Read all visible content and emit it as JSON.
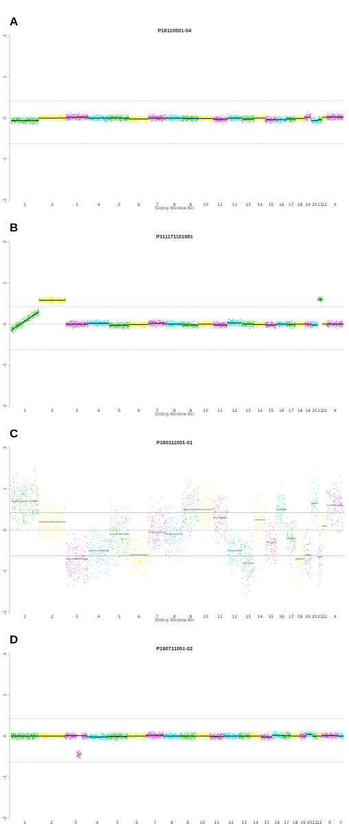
{
  "colors": {
    "palette": [
      "#33cc33",
      "#f0f02a",
      "#cc55cc",
      "#22dddd"
    ],
    "segment": "#111111",
    "threshold": "#888888",
    "baseline": "#aaaaaa"
  },
  "panels": [
    {
      "letter": "A",
      "title": "P18110501-04",
      "xlabel": "Sliding Window Bin",
      "y_ticks": [
        "2",
        "1",
        "0",
        "-1",
        "-2"
      ],
      "chr_labels": [
        "1",
        "2",
        "3",
        "4",
        "5",
        "6",
        "7",
        "8",
        "9",
        "10",
        "11",
        "12",
        "13",
        "14",
        "15",
        "16",
        "17",
        "18",
        "19",
        "20",
        "21",
        "22",
        "X"
      ]
    },
    {
      "letter": "B",
      "title": "P311171101001",
      "xlabel": "Sliding Window Bin",
      "y_ticks": [
        "2",
        "1",
        "0",
        "-1",
        "-2"
      ],
      "chr_labels": [
        "1",
        "2",
        "3",
        "4",
        "5",
        "6",
        "7",
        "8",
        "9",
        "10",
        "11",
        "12",
        "13",
        "14",
        "15",
        "16",
        "17",
        "18",
        "19",
        "20",
        "21",
        "22",
        "X"
      ]
    },
    {
      "letter": "C",
      "title": "P180111001-01",
      "xlabel": "Sliding Window Bin",
      "y_ticks": [
        "2",
        "1",
        "0",
        "-1",
        "-2"
      ],
      "chr_labels": [
        "1",
        "2",
        "3",
        "4",
        "5",
        "6",
        "7",
        "8",
        "9",
        "10",
        "11",
        "12",
        "13",
        "14",
        "15",
        "16",
        "17",
        "18",
        "19",
        "20",
        "21",
        "22",
        "X"
      ]
    },
    {
      "letter": "D",
      "title": "P180711001-02",
      "xlabel": "Sliding Window Bin",
      "y_ticks": [
        "2",
        "1",
        "0",
        "-1",
        "-2"
      ],
      "chr_labels": [
        "1",
        "2",
        "3",
        "4",
        "5",
        "6",
        "7",
        "8",
        "9",
        "10",
        "11",
        "12",
        "13",
        "14",
        "15",
        "16",
        "17",
        "18",
        "19",
        "20",
        "21",
        "22",
        "X",
        "Y"
      ]
    }
  ],
  "chart_data": [
    {
      "type": "scatter",
      "title": "P18110501-04",
      "xlabel": "Sliding Window Bin",
      "ylabel": "",
      "ylim": [
        -2,
        2
      ],
      "threshold_lines": [
        0.42,
        -0.62
      ],
      "chromosomes": [
        "1",
        "2",
        "3",
        "4",
        "5",
        "6",
        "7",
        "8",
        "9",
        "10",
        "11",
        "12",
        "13",
        "14",
        "15",
        "16",
        "17",
        "18",
        "19",
        "20",
        "21",
        "22",
        "X"
      ],
      "segments": [
        {
          "chr": "1",
          "mean": -0.06,
          "spread": 0.07
        },
        {
          "chr": "2",
          "mean": 0.0,
          "spread": 0.07
        },
        {
          "chr": "3",
          "mean": 0.02,
          "spread": 0.07
        },
        {
          "chr": "4",
          "mean": 0.0,
          "spread": 0.07
        },
        {
          "chr": "5",
          "mean": 0.0,
          "spread": 0.07
        },
        {
          "chr": "6",
          "mean": -0.02,
          "spread": 0.07
        },
        {
          "chr": "7",
          "mean": 0.0,
          "spread": 0.07
        },
        {
          "chr": "8",
          "mean": 0.0,
          "spread": 0.07
        },
        {
          "chr": "9",
          "mean": -0.01,
          "spread": 0.07
        },
        {
          "chr": "10",
          "mean": -0.01,
          "spread": 0.07
        },
        {
          "chr": "11",
          "mean": -0.03,
          "spread": 0.07
        },
        {
          "chr": "12",
          "mean": 0.0,
          "spread": 0.07
        },
        {
          "chr": "13",
          "mean": -0.02,
          "spread": 0.07
        },
        {
          "chr": "14",
          "mean": 0.0,
          "spread": 0.07
        },
        {
          "chr": "15",
          "mean": -0.04,
          "spread": 0.07
        },
        {
          "chr": "16",
          "mean": -0.04,
          "spread": 0.07
        },
        {
          "chr": "17",
          "mean": -0.02,
          "spread": 0.07
        },
        {
          "chr": "18",
          "mean": -0.01,
          "spread": 0.07
        },
        {
          "chr": "19",
          "mean": 0.02,
          "spread": 0.08
        },
        {
          "chr": "20",
          "mean": -0.06,
          "spread": 0.07
        },
        {
          "chr": "21",
          "mean": -0.04,
          "spread": 0.07
        },
        {
          "chr": "22",
          "mean": 0.02,
          "spread": 0.07
        },
        {
          "chr": "X",
          "mean": 0.03,
          "spread": 0.07
        }
      ]
    },
    {
      "type": "scatter",
      "title": "P311171101001",
      "xlabel": "Sliding Window Bin",
      "ylabel": "",
      "ylim": [
        -2,
        2
      ],
      "threshold_lines": [
        0.42,
        -0.62
      ],
      "chromosomes": [
        "1",
        "2",
        "3",
        "4",
        "5",
        "6",
        "7",
        "8",
        "9",
        "10",
        "11",
        "12",
        "13",
        "14",
        "15",
        "16",
        "17",
        "18",
        "19",
        "20",
        "21",
        "22",
        "X"
      ],
      "segments": [
        {
          "chr": "1",
          "mean": 0.0,
          "spread": 0.08,
          "trend": [
            -0.15,
            0.3
          ]
        },
        {
          "chr": "2",
          "mean": 0.58,
          "spread": 0.07
        },
        {
          "chr": "3",
          "mean": 0.0,
          "spread": 0.07
        },
        {
          "chr": "4",
          "mean": 0.02,
          "spread": 0.07
        },
        {
          "chr": "5",
          "mean": -0.03,
          "spread": 0.07
        },
        {
          "chr": "6",
          "mean": -0.01,
          "spread": 0.07
        },
        {
          "chr": "7",
          "mean": 0.02,
          "spread": 0.07
        },
        {
          "chr": "8",
          "mean": 0.0,
          "spread": 0.07
        },
        {
          "chr": "9",
          "mean": -0.02,
          "spread": 0.07
        },
        {
          "chr": "10",
          "mean": 0.0,
          "spread": 0.07
        },
        {
          "chr": "11",
          "mean": -0.02,
          "spread": 0.07
        },
        {
          "chr": "12",
          "mean": 0.03,
          "spread": 0.07
        },
        {
          "chr": "13",
          "mean": 0.0,
          "spread": 0.08
        },
        {
          "chr": "14",
          "mean": -0.01,
          "spread": 0.07
        },
        {
          "chr": "15",
          "mean": -0.02,
          "spread": 0.07
        },
        {
          "chr": "16",
          "mean": 0.0,
          "spread": 0.07
        },
        {
          "chr": "17",
          "mean": -0.01,
          "spread": 0.07
        },
        {
          "chr": "18",
          "mean": 0.0,
          "spread": 0.07
        },
        {
          "chr": "19",
          "mean": 0.0,
          "spread": 0.07
        },
        {
          "chr": "20",
          "mean": -0.02,
          "spread": 0.07
        },
        {
          "chr": "21",
          "mean": 0.6,
          "spread": 0.05
        },
        {
          "chr": "22",
          "mean": 0.0,
          "spread": 0.06
        },
        {
          "chr": "X",
          "mean": 0.0,
          "spread": 0.07
        }
      ]
    },
    {
      "type": "scatter",
      "title": "P180111001-01",
      "xlabel": "Sliding Window Bin",
      "ylabel": "",
      "ylim": [
        -2,
        2
      ],
      "threshold_lines": [
        0.42,
        -0.62
      ],
      "chromosomes": [
        "1",
        "2",
        "3",
        "4",
        "5",
        "6",
        "7",
        "8",
        "9",
        "10",
        "11",
        "12",
        "13",
        "14",
        "15",
        "16",
        "17",
        "18",
        "19",
        "20",
        "21",
        "22",
        "X"
      ],
      "segments": [
        {
          "chr": "1",
          "mean": 0.7,
          "spread": 0.55
        },
        {
          "chr": "2",
          "mean": 0.2,
          "spread": 0.5
        },
        {
          "chr": "3",
          "mean": -0.7,
          "spread": 0.5
        },
        {
          "chr": "4",
          "mean": -0.5,
          "spread": 0.5
        },
        {
          "chr": "5",
          "mean": -0.1,
          "spread": 0.55
        },
        {
          "chr": "6",
          "mean": -0.6,
          "spread": 0.55
        },
        {
          "chr": "7",
          "mean": -0.05,
          "spread": 0.55
        },
        {
          "chr": "8",
          "mean": -0.1,
          "spread": 0.5
        },
        {
          "chr": "9",
          "mean": 0.5,
          "spread": 0.55
        },
        {
          "chr": "10",
          "mean": 0.5,
          "spread": 0.55
        },
        {
          "chr": "11",
          "mean": 0.3,
          "spread": 0.5
        },
        {
          "chr": "12",
          "mean": -0.5,
          "spread": 0.45
        },
        {
          "chr": "13",
          "mean": -0.8,
          "spread": 0.5
        },
        {
          "chr": "14",
          "mean": 0.25,
          "spread": 0.45
        },
        {
          "chr": "15",
          "mean": -0.3,
          "spread": 0.5
        },
        {
          "chr": "16",
          "mean": 0.5,
          "spread": 0.5
        },
        {
          "chr": "17",
          "mean": -0.2,
          "spread": 0.5
        },
        {
          "chr": "18",
          "mean": -0.7,
          "spread": 0.5
        },
        {
          "chr": "19",
          "mean": -0.6,
          "spread": 0.5
        },
        {
          "chr": "20",
          "mean": 0.65,
          "spread": 0.55
        },
        {
          "chr": "21",
          "mean": -0.65,
          "spread": 0.6
        },
        {
          "chr": "22",
          "mean": 0.1,
          "spread": 0.5
        },
        {
          "chr": "X",
          "mean": 0.6,
          "spread": 0.5
        }
      ]
    },
    {
      "type": "scatter",
      "title": "P180711001-02",
      "xlabel": "Sliding Window Bin",
      "ylabel": "",
      "ylim": [
        -2,
        2
      ],
      "threshold_lines": [
        0.42,
        -0.62
      ],
      "chromosomes": [
        "1",
        "2",
        "3",
        "4",
        "5",
        "6",
        "7",
        "8",
        "9",
        "10",
        "11",
        "12",
        "13",
        "14",
        "15",
        "16",
        "17",
        "18",
        "19",
        "20",
        "21",
        "22",
        "X",
        "Y"
      ],
      "segments": [
        {
          "chr": "1",
          "mean": 0.0,
          "spread": 0.07
        },
        {
          "chr": "2",
          "mean": 0.0,
          "spread": 0.07
        },
        {
          "chr": "3",
          "mean": 0.01,
          "spread": 0.07,
          "tail": -0.45
        },
        {
          "chr": "4",
          "mean": -0.02,
          "spread": 0.07
        },
        {
          "chr": "5",
          "mean": -0.01,
          "spread": 0.07
        },
        {
          "chr": "6",
          "mean": 0.0,
          "spread": 0.07
        },
        {
          "chr": "7",
          "mean": 0.02,
          "spread": 0.07
        },
        {
          "chr": "8",
          "mean": 0.0,
          "spread": 0.07
        },
        {
          "chr": "9",
          "mean": 0.0,
          "spread": 0.08
        },
        {
          "chr": "10",
          "mean": 0.0,
          "spread": 0.07
        },
        {
          "chr": "11",
          "mean": -0.01,
          "spread": 0.07
        },
        {
          "chr": "12",
          "mean": 0.0,
          "spread": 0.07
        },
        {
          "chr": "13",
          "mean": 0.0,
          "spread": 0.07
        },
        {
          "chr": "14",
          "mean": 0.0,
          "spread": 0.07
        },
        {
          "chr": "15",
          "mean": -0.02,
          "spread": 0.07
        },
        {
          "chr": "16",
          "mean": 0.02,
          "spread": 0.08
        },
        {
          "chr": "17",
          "mean": 0.01,
          "spread": 0.08
        },
        {
          "chr": "18",
          "mean": 0.0,
          "spread": 0.07
        },
        {
          "chr": "19",
          "mean": 0.0,
          "spread": 0.08
        },
        {
          "chr": "20",
          "mean": 0.04,
          "spread": 0.07
        },
        {
          "chr": "21",
          "mean": 0.0,
          "spread": 0.07
        },
        {
          "chr": "22",
          "mean": 0.0,
          "spread": 0.07
        },
        {
          "chr": "X",
          "mean": 0.01,
          "spread": 0.07
        },
        {
          "chr": "Y",
          "mean": 0.0,
          "spread": 0.07
        }
      ]
    }
  ]
}
